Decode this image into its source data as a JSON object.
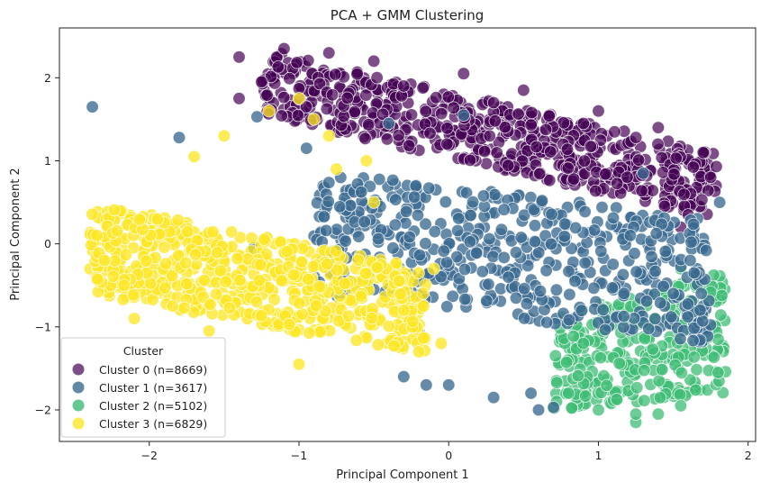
{
  "chart_data": {
    "type": "scatter",
    "title": "PCA + GMM Clustering",
    "xlabel": "Principal Component 1",
    "ylabel": "Principal Component 2",
    "xlim": [
      -2.6,
      2.05
    ],
    "ylim": [
      -2.38,
      2.6
    ],
    "xticks": [
      -2,
      -1,
      0,
      1,
      2
    ],
    "yticks": [
      -2,
      -1,
      0,
      1,
      2
    ],
    "grid": false,
    "legend": {
      "title": "Cluster",
      "placement": "lower-left",
      "entries": [
        "Cluster 0 (n=8669)",
        "Cluster 1 (n=3617)",
        "Cluster 2 (n=5102)",
        "Cluster 3 (n=6829)"
      ]
    },
    "series": [
      {
        "name": "Cluster 0 (n=8669)",
        "color": "#440154",
        "region": {
          "x_range": [
            -1.25,
            1.8
          ],
          "y_top_at_xmin": 2.35,
          "y_top_at_xmax": 1.1,
          "y_bottom_at_xmin": 1.55,
          "y_bottom_at_xmax": 0.3
        },
        "points": [
          [
            -1.1,
            2.35
          ],
          [
            -1.4,
            2.25
          ],
          [
            -1.25,
            1.95
          ],
          [
            -1.4,
            1.75
          ],
          [
            -0.8,
            2.3
          ],
          [
            -0.5,
            2.2
          ],
          [
            0.1,
            2.05
          ],
          [
            0.5,
            1.85
          ],
          [
            1.0,
            1.6
          ],
          [
            1.4,
            1.4
          ],
          [
            1.7,
            1.1
          ],
          [
            1.75,
            0.8
          ],
          [
            1.6,
            0.35
          ],
          [
            0.9,
            1.45
          ],
          [
            0.3,
            1.7
          ],
          [
            -0.3,
            1.9
          ],
          [
            1.55,
            0.2
          ]
        ]
      },
      {
        "name": "Cluster 1 (n=3617)",
        "color": "#3b6a8f",
        "region": {
          "x_range": [
            -0.9,
            1.75
          ],
          "y_top_at_xmin": 0.9,
          "y_top_at_xmax": 0.3,
          "y_bottom_at_xmin": -0.6,
          "y_bottom_at_xmax": -1.2
        },
        "points": [
          [
            -2.38,
            1.65
          ],
          [
            -1.8,
            1.28
          ],
          [
            -1.28,
            1.53
          ],
          [
            -1.3,
            -0.05
          ],
          [
            -0.95,
            1.15
          ],
          [
            -0.4,
            1.45
          ],
          [
            0.1,
            1.55
          ],
          [
            -0.5,
            -0.55
          ],
          [
            -0.2,
            -1.05
          ],
          [
            -0.3,
            -1.6
          ],
          [
            0.3,
            -1.85
          ],
          [
            0.55,
            -1.8
          ],
          [
            0.6,
            -2.0
          ],
          [
            0.7,
            -1.97
          ],
          [
            1.3,
            0.85
          ],
          [
            1.62,
            0.02
          ],
          [
            1.64,
            -0.35
          ],
          [
            1.72,
            -0.08
          ],
          [
            1.81,
            0.5
          ],
          [
            1.5,
            -0.6
          ],
          [
            0.0,
            -1.7
          ],
          [
            -0.15,
            -1.7
          ]
        ]
      },
      {
        "name": "Cluster 2 (n=5102)",
        "color": "#3dbc74",
        "region": {
          "x_range": [
            0.7,
            1.85
          ],
          "y_top_at_xmin": -0.9,
          "y_top_at_xmax": -0.25,
          "y_bottom_at_xmin": -2.0,
          "y_bottom_at_xmax": -1.8
        },
        "points": [
          [
            1.25,
            -2.15
          ],
          [
            1.4,
            -2.05
          ],
          [
            1.25,
            -2.05
          ],
          [
            1.55,
            -1.95
          ],
          [
            1.8,
            -1.55
          ],
          [
            1.8,
            -1.15
          ],
          [
            1.65,
            -0.5
          ],
          [
            1.55,
            -0.3
          ],
          [
            0.9,
            -1.2
          ],
          [
            0.8,
            -1.8
          ],
          [
            1.0,
            -2.0
          ],
          [
            1.7,
            -0.85
          ]
        ]
      },
      {
        "name": "Cluster 3 (n=6829)",
        "color": "#fde725",
        "region": {
          "x_range": [
            -2.4,
            -0.15
          ],
          "y_top_at_xmin": 0.5,
          "y_top_at_xmax": -0.3,
          "y_bottom_at_xmin": -0.6,
          "y_bottom_at_xmax": -1.35
        },
        "points": [
          [
            -2.35,
            0.1
          ],
          [
            -2.3,
            -0.2
          ],
          [
            -1.7,
            1.05
          ],
          [
            -1.5,
            1.3
          ],
          [
            -1.2,
            1.6
          ],
          [
            -1.0,
            1.75
          ],
          [
            -0.9,
            1.5
          ],
          [
            -0.8,
            1.3
          ],
          [
            -0.75,
            0.9
          ],
          [
            -0.5,
            0.5
          ],
          [
            -0.3,
            -0.8
          ],
          [
            -0.05,
            -1.2
          ],
          [
            -0.2,
            -1.3
          ],
          [
            -1.0,
            -1.45
          ],
          [
            -1.6,
            -1.05
          ],
          [
            -2.1,
            -0.9
          ],
          [
            -0.55,
            1.0
          ],
          [
            -0.1,
            -0.3
          ]
        ]
      }
    ]
  }
}
